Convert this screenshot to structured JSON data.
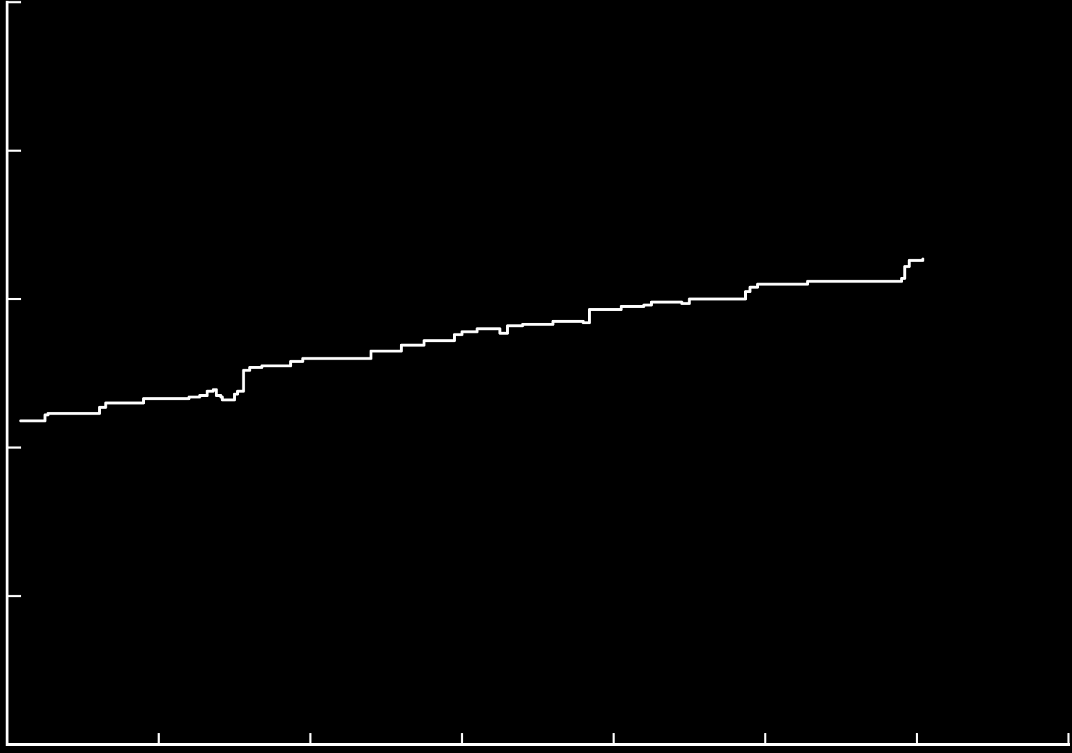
{
  "colors": {
    "background": "#000000",
    "foreground": "#ffffff"
  },
  "chart_data": {
    "type": "line",
    "title": "",
    "xlabel": "",
    "ylabel": "",
    "xlim": [
      0,
      7
    ],
    "ylim": [
      0,
      5
    ],
    "grid": false,
    "legend": "none",
    "x_ticks": [
      1,
      2,
      3,
      4,
      5,
      6,
      7
    ],
    "y_ticks": [
      1,
      2,
      3,
      4,
      5
    ],
    "tick_labels_shown": false,
    "series": [
      {
        "step": true,
        "x": [
          0.09,
          0.13,
          0.25,
          0.27,
          0.61,
          0.65,
          0.9,
          1.2,
          1.27,
          1.32,
          1.36,
          1.38,
          1.41,
          1.42,
          1.46,
          1.5,
          1.52,
          1.55,
          1.56,
          1.6,
          1.68,
          1.87,
          1.95,
          2.0,
          2.2,
          2.36,
          2.4,
          2.55,
          2.6,
          2.75,
          2.8,
          2.95,
          3.0,
          3.1,
          3.15,
          3.25,
          3.3,
          3.36,
          3.4,
          3.6,
          3.8,
          3.84,
          4.05,
          4.2,
          4.25,
          4.45,
          4.5,
          4.85,
          4.87,
          4.9,
          4.95,
          5.22,
          5.28,
          5.65,
          5.9,
          5.92,
          5.95,
          6.0,
          6.04
        ],
        "y": [
          2.18,
          2.18,
          2.22,
          2.23,
          2.27,
          2.3,
          2.33,
          2.34,
          2.35,
          2.38,
          2.39,
          2.35,
          2.34,
          2.32,
          2.32,
          2.36,
          2.38,
          2.38,
          2.52,
          2.54,
          2.55,
          2.58,
          2.6,
          2.6,
          2.6,
          2.6,
          2.65,
          2.65,
          2.69,
          2.72,
          2.72,
          2.76,
          2.78,
          2.8,
          2.8,
          2.77,
          2.82,
          2.82,
          2.83,
          2.85,
          2.84,
          2.93,
          2.95,
          2.96,
          2.98,
          2.97,
          3.0,
          3.0,
          3.05,
          3.08,
          3.1,
          3.1,
          3.12,
          3.12,
          3.14,
          3.22,
          3.26,
          3.26,
          3.27
        ]
      }
    ]
  }
}
